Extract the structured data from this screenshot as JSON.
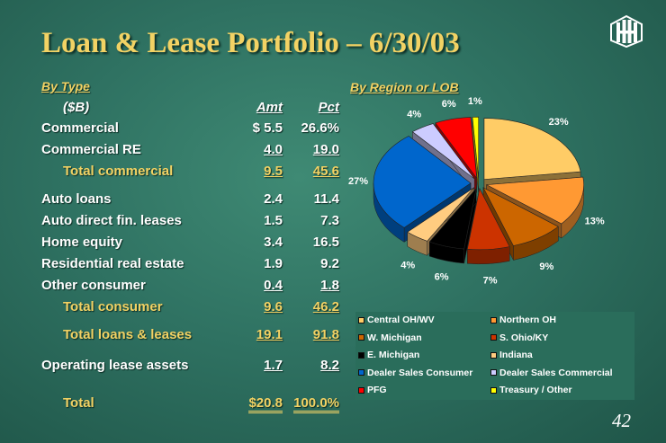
{
  "title": "Loan & Lease Portfolio – 6/30/03",
  "page_number": "42",
  "table": {
    "section_title": "By Type",
    "units_label": "($B)",
    "amt_header": "Amt",
    "pct_header": "Pct",
    "rows": [
      {
        "label": "Commercial",
        "amt": "$ 5.5",
        "pct": "26.6%",
        "style": "normal"
      },
      {
        "label": "Commercial RE",
        "amt": "4.0",
        "pct": "19.0",
        "style": "underline"
      },
      {
        "label": "Total commercial",
        "amt": "9.5",
        "pct": "45.6",
        "style": "total"
      },
      {
        "label": "Auto loans",
        "amt": "2.4",
        "pct": "11.4",
        "style": "normal"
      },
      {
        "label": "Auto direct fin. leases",
        "amt": "1.5",
        "pct": "7.3",
        "style": "normal"
      },
      {
        "label": "Home equity",
        "amt": "3.4",
        "pct": "16.5",
        "style": "normal"
      },
      {
        "label": "Residential real estate",
        "amt": "1.9",
        "pct": "9.2",
        "style": "normal"
      },
      {
        "label": "Other consumer",
        "amt": "0.4",
        "pct": "1.8",
        "style": "underline"
      },
      {
        "label": "Total consumer",
        "amt": "9.6",
        "pct": "46.2",
        "style": "total"
      },
      {
        "label": "Total loans & leases",
        "amt": "19.1",
        "pct": "91.8",
        "style": "total"
      },
      {
        "label": "Operating lease assets",
        "amt": "1.7",
        "pct": "8.2",
        "style": "underline"
      },
      {
        "label": "Total",
        "amt": "$20.8",
        "pct": "100.0%",
        "style": "grand"
      }
    ]
  },
  "chart_data": {
    "type": "pie",
    "title": "By Region or LOB",
    "categories": [
      "Central OH/WV",
      "Northern OH",
      "W. Michigan",
      "S. Ohio/KY",
      "E. Michigan",
      "Indiana",
      "Dealer Sales Consumer",
      "Dealer Sales Commercial",
      "PFG",
      "Treasury / Other"
    ],
    "values": [
      23,
      13,
      9,
      7,
      6,
      4,
      27,
      4,
      6,
      1
    ],
    "data_labels": [
      "23%",
      "13%",
      "9%",
      "7%",
      "6%",
      "4%",
      "27%",
      "4%",
      "6%",
      "1%"
    ],
    "colors": [
      "#ffcc66",
      "#ff9933",
      "#cc6600",
      "#cc3300",
      "#000000",
      "#ffcc80",
      "#0066cc",
      "#ccccff",
      "#ff0000",
      "#ffff00"
    ],
    "legend_position": "bottom",
    "exploded": true,
    "style": "3d"
  }
}
